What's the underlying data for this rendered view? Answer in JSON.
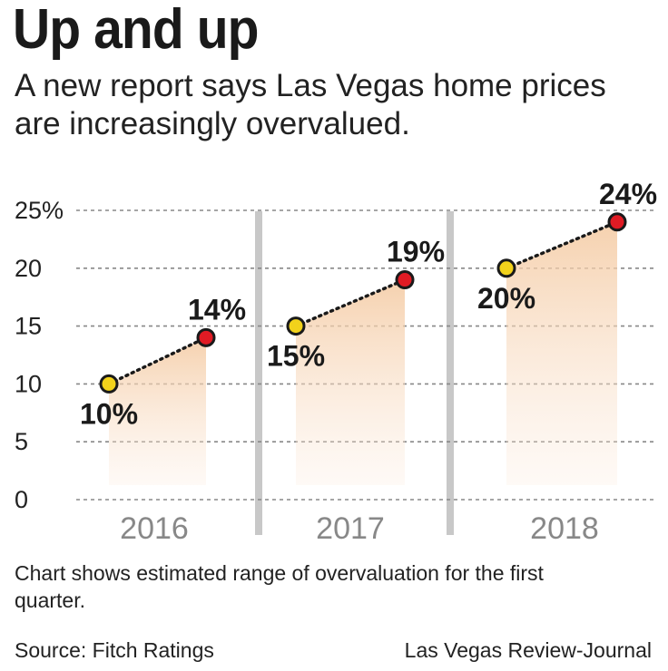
{
  "header": {
    "title": "Up and up",
    "subtitle": "A new report says Las Vegas home prices are increasingly overvalued."
  },
  "footer": {
    "note": "Chart shows estimated range of overvaluation for the first quarter.",
    "source": "Source: Fitch Ratings",
    "credit": "Las Vegas Review-Journal"
  },
  "colors": {
    "low_marker": "#f2d21b",
    "high_marker": "#e01b24",
    "area_fill": "#f7d9bd",
    "grid": "#888888",
    "divider": "#c8c8c8"
  },
  "chart_data": {
    "type": "line",
    "title": "Up and up",
    "ylim": [
      0,
      25
    ],
    "yticks": [
      0,
      5,
      10,
      15,
      20,
      25
    ],
    "ytick_labels": [
      "0",
      "5",
      "10",
      "15",
      "20",
      "25%"
    ],
    "grid": true,
    "categories": [
      "2016",
      "2017",
      "2018"
    ],
    "series": [
      {
        "category": "2016",
        "low": 10,
        "high": 14,
        "low_label": "10%",
        "high_label": "14%"
      },
      {
        "category": "2017",
        "low": 15,
        "high": 19,
        "low_label": "15%",
        "high_label": "19%"
      },
      {
        "category": "2018",
        "low": 20,
        "high": 24,
        "low_label": "20%",
        "high_label": "24%"
      }
    ]
  }
}
